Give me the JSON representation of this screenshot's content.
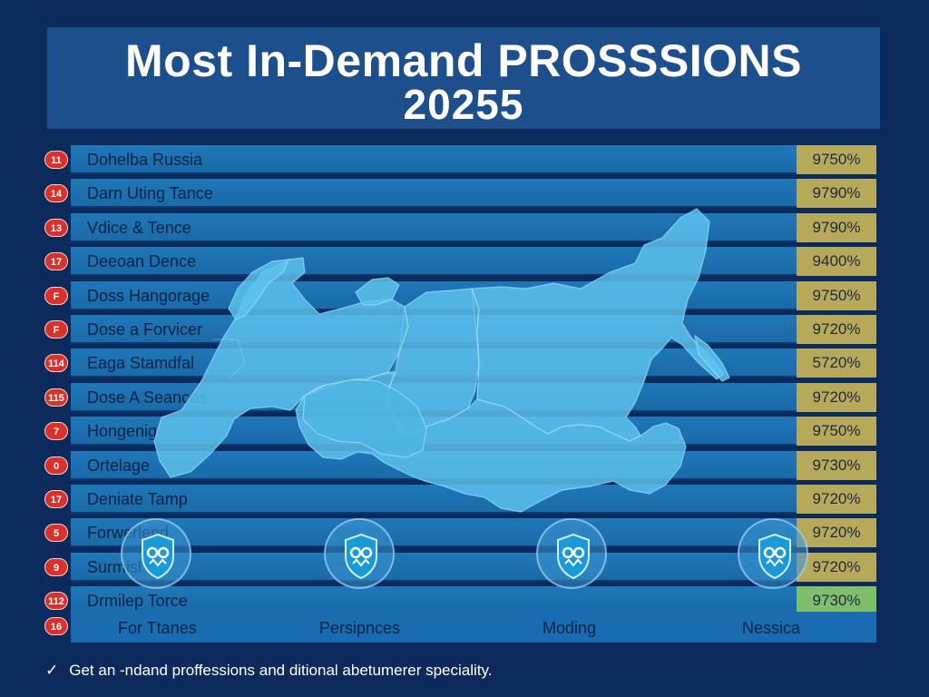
{
  "title": {
    "line1": "Most In-Demand PROSSSIONS",
    "line2": "20255"
  },
  "chart_data": {
    "type": "table",
    "rows": [
      {
        "rank": "11",
        "label": "Dohelba Russia",
        "value": "9750%"
      },
      {
        "rank": "14",
        "label": "Darn Uting Tance",
        "value": "9790%"
      },
      {
        "rank": "13",
        "label": "Vdice & Tence",
        "value": "9790%"
      },
      {
        "rank": "17",
        "label": "Deeoan Dence",
        "value": "9400%"
      },
      {
        "rank": "F",
        "label": "Doss Hangorage",
        "value": "9750%"
      },
      {
        "rank": "F",
        "label": "Dose a Forvicer",
        "value": "9720%"
      },
      {
        "rank": "114",
        "label": "Eaga Stamdfal",
        "value": "5720%"
      },
      {
        "rank": "115",
        "label": "Dose A Seances",
        "value": "9720%"
      },
      {
        "rank": "7",
        "label": "Hongenig",
        "value": "9750%"
      },
      {
        "rank": "0",
        "label": "Ortelage",
        "value": "9730%"
      },
      {
        "rank": "17",
        "label": "Deniate Tamp",
        "value": "9720%"
      },
      {
        "rank": "5",
        "label": "Forwerlend",
        "value": "9720%"
      },
      {
        "rank": "9",
        "label": "Surmisl",
        "value": "9720%"
      },
      {
        "rank": "112",
        "label": "Drmilep Torce",
        "value": "9730%"
      }
    ],
    "categories_rank": "16",
    "categories": [
      "For Ttanes",
      "Persipnces",
      "Moding",
      "Nessica"
    ],
    "background_map": "russia-map",
    "colors": {
      "background": "#0c2a5c",
      "bar": "#1f77b8",
      "percent_cell": "#b6a95a",
      "percent_cell_last": "#7fbf6c",
      "badge": "#d9312b",
      "map": "#5ec3ee"
    }
  },
  "icons": [
    "check-icon",
    "shield-icon"
  ],
  "footer": {
    "text": "Get an -ndand proffessions and ditional abetumerer speciality."
  }
}
